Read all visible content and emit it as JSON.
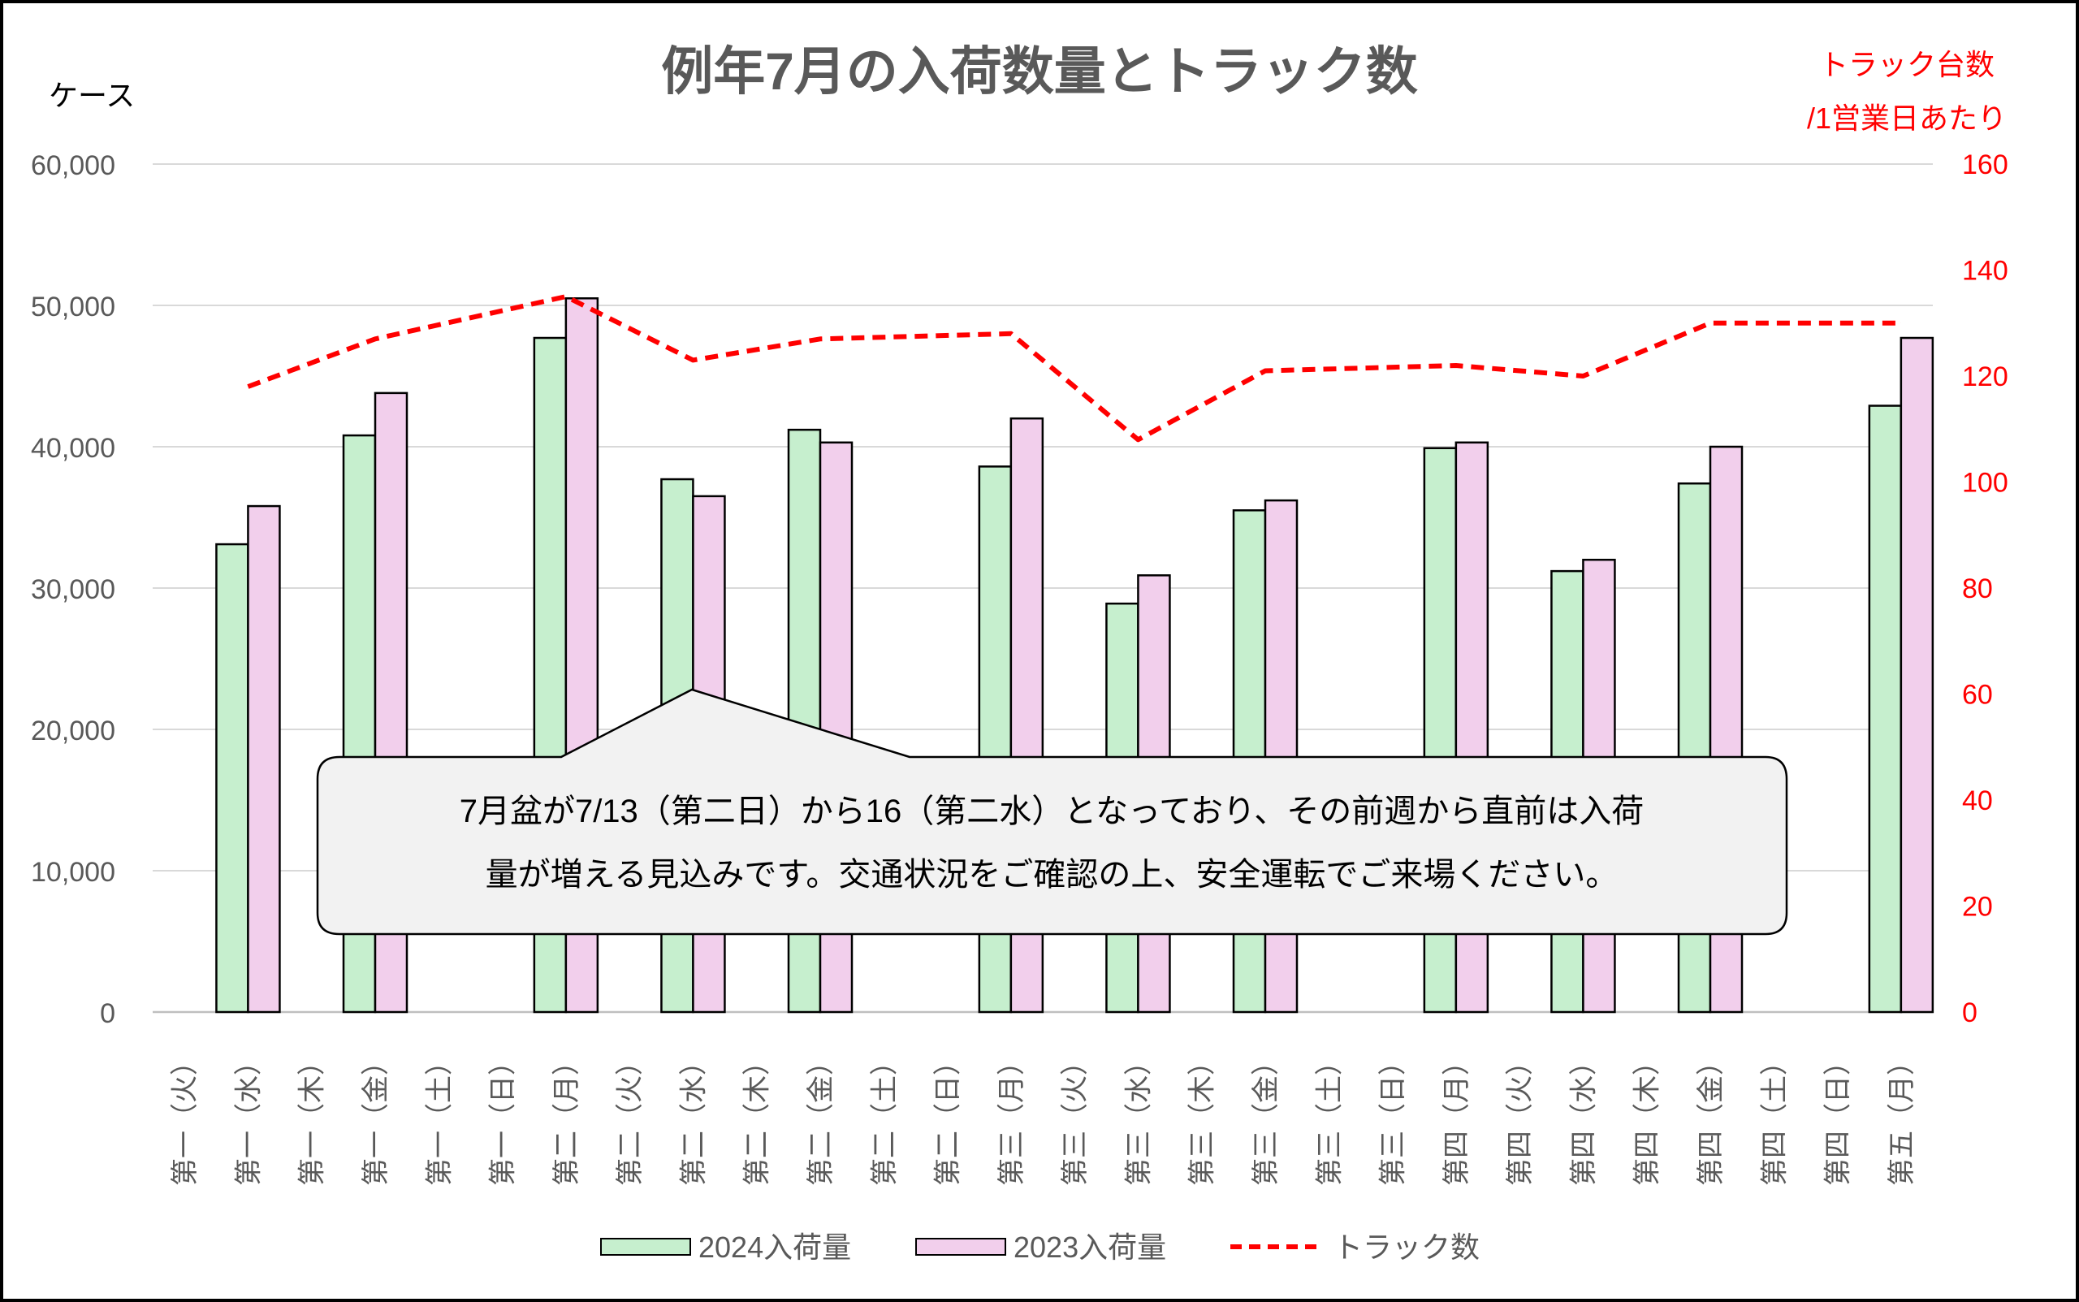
{
  "chart_data": {
    "type": "bar",
    "title": "例年7月の入荷数量とトラック数",
    "ylabel": "ケース",
    "y2label_line1": "トラック台数",
    "y2label_line2": "/1営業日あたり",
    "ylim": [
      0,
      60000
    ],
    "y2lim": [
      0,
      160
    ],
    "yticks": [
      "0",
      "10,000",
      "20,000",
      "30,000",
      "40,000",
      "50,000",
      "60,000"
    ],
    "y2ticks": [
      "0",
      "20",
      "40",
      "60",
      "80",
      "100",
      "120",
      "140",
      "160"
    ],
    "grid": true,
    "legend_position": "bottom",
    "categories": [
      "第一（火）",
      "第一（水）",
      "第一（木）",
      "第一（金）",
      "第一（土）",
      "第一（日）",
      "第二（月）",
      "第二（火）",
      "第二（水）",
      "第二（木）",
      "第二（金）",
      "第二（土）",
      "第二（日）",
      "第三（月）",
      "第三（火）",
      "第三（水）",
      "第三（木）",
      "第三（金）",
      "第三（土）",
      "第三（日）",
      "第四（月）",
      "第四（火）",
      "第四（水）",
      "第四（木）",
      "第四（金）",
      "第四（土）",
      "第四（日）",
      "第五（月）"
    ],
    "series": [
      {
        "name": "2024入荷量",
        "kind": "bar",
        "color": "#c6efce",
        "values": [
          0,
          33100,
          0,
          40800,
          0,
          0,
          47700,
          0,
          37700,
          0,
          41200,
          0,
          0,
          38600,
          0,
          28900,
          0,
          35500,
          0,
          0,
          39900,
          0,
          31200,
          0,
          37400,
          0,
          0,
          42900
        ]
      },
      {
        "name": "2023入荷量",
        "kind": "bar",
        "color": "#f2cfec",
        "values": [
          0,
          35800,
          0,
          43800,
          0,
          0,
          50500,
          0,
          36500,
          0,
          40300,
          0,
          0,
          42000,
          0,
          30900,
          0,
          36200,
          0,
          0,
          40300,
          0,
          32000,
          0,
          40000,
          0,
          0,
          47700
        ]
      },
      {
        "name": "トラック数",
        "kind": "line",
        "axis": "right",
        "color": "#ff0000",
        "values": [
          null,
          118,
          null,
          127,
          null,
          null,
          135,
          null,
          123,
          null,
          127,
          null,
          null,
          128,
          null,
          108,
          null,
          121,
          null,
          null,
          122,
          null,
          120,
          null,
          130,
          null,
          null,
          130
        ]
      }
    ],
    "annotation": {
      "line1": "7月盆が7/13（第二日）から16（第二水）となっており、その前週から直前は入荷",
      "line2": "量が増える見込みです。交通状況をご確認の上、安全運転でご来場ください。"
    }
  }
}
